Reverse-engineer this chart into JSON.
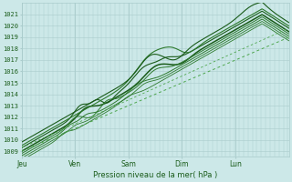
{
  "xlabel": "Pression niveau de la mer( hPa )",
  "ylim": [
    1008.5,
    1022.0
  ],
  "yticks": [
    1009,
    1010,
    1011,
    1012,
    1013,
    1014,
    1015,
    1016,
    1017,
    1018,
    1019,
    1020,
    1021
  ],
  "xlim": [
    0,
    5.0
  ],
  "day_positions": [
    0.0,
    1.0,
    2.0,
    3.0,
    4.0
  ],
  "day_labels": [
    "Jeu",
    "Ven",
    "Sam",
    "Dim",
    "Lun"
  ],
  "background_color": "#cce8e8",
  "grid_color": "#aacccc",
  "line_color_dark": "#1a5c1a",
  "line_color_mid": "#2d7a2d",
  "line_color_dashed": "#4da64d",
  "n_points": 200
}
